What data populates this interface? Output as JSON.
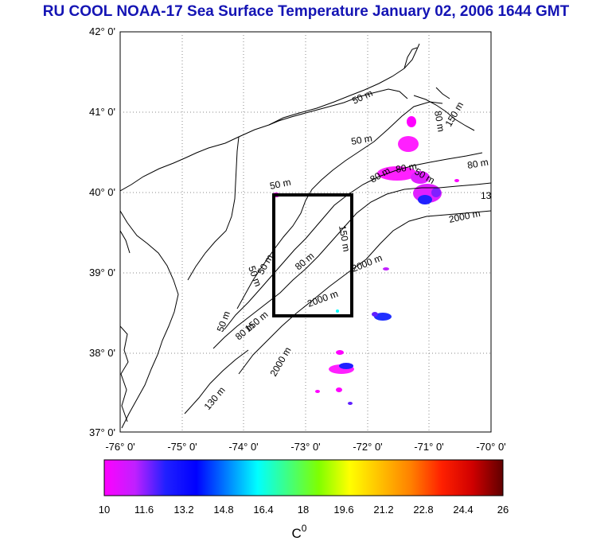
{
  "title": "RU COOL  NOAA-17 Sea Surface Temperature January 02, 2006 1644 GMT",
  "map": {
    "lon_range": [
      -76,
      -70
    ],
    "lat_range": [
      37,
      42
    ],
    "lon_ticks": [
      "-76° 0'",
      "-75° 0'",
      "-74° 0'",
      "-73° 0'",
      "-72° 0'",
      "-71° 0'",
      "-70° 0'"
    ],
    "lat_ticks": [
      "42° 0'",
      "41° 0'",
      "40° 0'",
      "39° 0'",
      "38° 0'",
      "37° 0'"
    ],
    "grid": "dotted",
    "study_box": {
      "lon": [
        -73.45,
        -72.25
      ],
      "lat": [
        38.5,
        40.0
      ]
    },
    "isobath_labels": [
      "50 m",
      "50 m",
      "50 m",
      "80 m",
      "80 m",
      "50 m",
      "80 m",
      "150 m",
      "2000 m",
      "2000 m",
      "150 m",
      "80 m",
      "50 m",
      "50 m",
      "50 m",
      "80 m",
      "150 m",
      "2000 m",
      "130 m",
      "2000 m",
      "80 m",
      "13"
    ],
    "land_color": "#ffffff",
    "coast_color": "#000000"
  },
  "colorbar": {
    "ticks": [
      "10",
      "11.6",
      "13.2",
      "14.8",
      "16.4",
      "18",
      "19.6",
      "21.2",
      "22.8",
      "24.4",
      "26"
    ],
    "range": [
      10,
      26
    ],
    "unit_label": "C",
    "unit_sup": "0",
    "colors": [
      "#ff00ff",
      "#c020ff",
      "#2020ff",
      "#0000ff",
      "#0080ff",
      "#00ffff",
      "#40ff80",
      "#80ff00",
      "#ffff00",
      "#ffc000",
      "#ff8000",
      "#ff2000",
      "#d00000",
      "#600000"
    ]
  }
}
